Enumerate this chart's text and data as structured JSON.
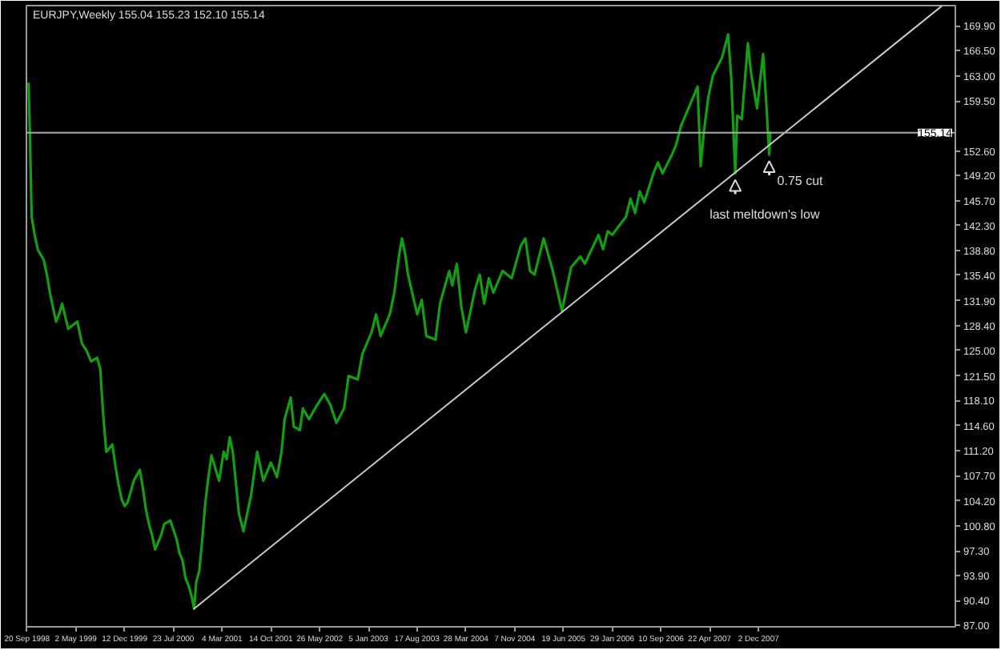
{
  "chart_data": {
    "type": "line",
    "title": "EURJPY,Weekly 155.04 155.23 152.10 155.14",
    "series": [
      {
        "color": "#12a012",
        "x": [
          "1998-09-27",
          "1998-10-04",
          "1998-10-11",
          "1998-10-25",
          "1998-11-08",
          "1998-12-06",
          "1998-12-20",
          "1999-01-03",
          "1999-01-17",
          "1999-01-31",
          "1999-02-14",
          "1999-02-28",
          "1999-03-28",
          "1999-04-18",
          "1999-05-09",
          "1999-05-30",
          "1999-06-20",
          "1999-07-11",
          "1999-08-08",
          "1999-08-22",
          "1999-09-05",
          "1999-09-19",
          "1999-10-17",
          "1999-10-31",
          "1999-11-14",
          "1999-11-28",
          "1999-12-12",
          "1999-12-26",
          "2000-01-09",
          "2000-01-23",
          "2000-02-20",
          "2000-03-05",
          "2000-03-19",
          "2000-04-02",
          "2000-04-16",
          "2000-04-30",
          "2000-05-14",
          "2000-05-28",
          "2000-06-11",
          "2000-07-09",
          "2000-08-06",
          "2000-08-20",
          "2000-09-03",
          "2000-09-17",
          "2000-10-01",
          "2000-10-15",
          "2000-10-26",
          "2000-11-05",
          "2000-11-19",
          "2000-12-03",
          "2000-12-17",
          "2000-12-31",
          "2001-01-14",
          "2001-02-18",
          "2001-03-11",
          "2001-03-25",
          "2001-04-08",
          "2001-04-22",
          "2001-05-20",
          "2001-06-10",
          "2001-07-15",
          "2001-08-12",
          "2001-09-09",
          "2001-10-14",
          "2001-11-11",
          "2001-12-02",
          "2001-12-16",
          "2002-01-13",
          "2002-01-27",
          "2002-02-24",
          "2002-03-10",
          "2002-04-07",
          "2002-05-05",
          "2002-06-16",
          "2002-07-14",
          "2002-08-11",
          "2002-09-15",
          "2002-10-06",
          "2002-11-17",
          "2002-12-08",
          "2003-01-19",
          "2003-02-09",
          "2003-03-02",
          "2003-04-13",
          "2003-05-04",
          "2003-05-25",
          "2003-06-08",
          "2003-06-22",
          "2003-07-06",
          "2003-08-17",
          "2003-09-07",
          "2003-09-28",
          "2003-11-09",
          "2003-11-30",
          "2004-01-11",
          "2004-01-25",
          "2004-02-15",
          "2004-03-07",
          "2004-03-28",
          "2004-05-09",
          "2004-05-30",
          "2004-06-20",
          "2004-07-11",
          "2004-08-01",
          "2004-09-12",
          "2004-10-24",
          "2004-12-05",
          "2004-12-26",
          "2005-01-16",
          "2005-02-06",
          "2005-03-20",
          "2005-05-01",
          "2005-06-12",
          "2005-07-24",
          "2005-09-04",
          "2005-09-25",
          "2005-11-27",
          "2005-12-18",
          "2006-01-08",
          "2006-01-29",
          "2006-04-02",
          "2006-04-23",
          "2006-05-14",
          "2006-06-04",
          "2006-06-25",
          "2006-08-06",
          "2006-08-27",
          "2006-09-17",
          "2006-10-29",
          "2006-11-19",
          "2006-12-10",
          "2007-01-21",
          "2007-02-25",
          "2007-03-11",
          "2007-03-25",
          "2007-04-15",
          "2007-05-06",
          "2007-06-17",
          "2007-07-15",
          "2007-07-29",
          "2007-08-17",
          "2007-08-26",
          "2007-09-16",
          "2007-10-14",
          "2007-10-28",
          "2007-11-25",
          "2007-12-23",
          "2008-01-06",
          "2008-01-20",
          "2008-01-25"
        ],
        "values": [
          161.9,
          153.5,
          143.5,
          141.0,
          139.0,
          137.5,
          135.5,
          133.0,
          131.0,
          129.0,
          130.0,
          131.5,
          128.0,
          128.5,
          129.0,
          126.0,
          125.0,
          123.5,
          124.0,
          122.5,
          116.0,
          111.0,
          112.0,
          109.0,
          106.5,
          104.5,
          103.5,
          104.0,
          105.5,
          107.0,
          108.5,
          106.0,
          103.0,
          101.0,
          99.5,
          97.5,
          98.5,
          99.5,
          101.0,
          101.5,
          99.0,
          97.0,
          96.0,
          93.5,
          92.5,
          91.0,
          89.3,
          93.0,
          94.5,
          99.0,
          104.0,
          107.5,
          110.5,
          107.0,
          111.0,
          110.0,
          113.0,
          111.0,
          102.5,
          100.0,
          105.0,
          111.0,
          107.0,
          109.5,
          107.5,
          111.0,
          115.5,
          118.5,
          114.5,
          114.0,
          117.0,
          115.5,
          117.0,
          119.0,
          117.5,
          115.0,
          117.0,
          121.5,
          121.0,
          124.5,
          127.5,
          130.0,
          127.0,
          130.0,
          133.0,
          138.0,
          140.5,
          138.5,
          135.5,
          130.0,
          132.0,
          127.0,
          126.5,
          131.5,
          136.0,
          134.0,
          137.0,
          131.0,
          127.5,
          133.5,
          135.5,
          131.5,
          135.0,
          133.0,
          136.0,
          135.0,
          139.5,
          140.5,
          136.0,
          135.5,
          140.5,
          136.0,
          130.5,
          136.5,
          138.0,
          137.0,
          141.0,
          139.0,
          141.5,
          141.0,
          143.5,
          146.0,
          144.0,
          147.0,
          145.5,
          149.5,
          151.0,
          149.5,
          152.0,
          153.5,
          156.0,
          159.0,
          161.5,
          150.5,
          155.0,
          160.0,
          163.0,
          165.5,
          168.7,
          163.0,
          149.5,
          157.5,
          157.0,
          167.5,
          163.5,
          158.5,
          166.0,
          159.5,
          152.1,
          155.14
        ]
      },
      {
        "type": "line",
        "color": "#c8c8c8",
        "x": [
          "2000-10-26",
          "2010-03-21"
        ],
        "values": [
          89.3,
          172.6
        ]
      }
    ],
    "xlim": [
      "1998-09-17",
      "2010-05-24"
    ],
    "xticks": [
      {
        "value": "1998-09-20",
        "label": "20 Sep 1998"
      },
      {
        "value": "1999-05-02",
        "label": "2 May 1999"
      },
      {
        "value": "1999-12-12",
        "label": "12 Dec 1999"
      },
      {
        "value": "2000-07-23",
        "label": "23 Jul 2000"
      },
      {
        "value": "2001-03-04",
        "label": "4 Mar 2001"
      },
      {
        "value": "2001-10-14",
        "label": "14 Oct 2001"
      },
      {
        "value": "2002-05-26",
        "label": "26 May 2002"
      },
      {
        "value": "2003-01-05",
        "label": "5 Jan 2003"
      },
      {
        "value": "2003-08-17",
        "label": "17 Aug 2003"
      },
      {
        "value": "2004-03-28",
        "label": "28 Mar 2004"
      },
      {
        "value": "2004-11-07",
        "label": "7 Nov 2004"
      },
      {
        "value": "2005-06-19",
        "label": "19 Jun 2005"
      },
      {
        "value": "2006-01-29",
        "label": "29 Jan 2006"
      },
      {
        "value": "2006-09-10",
        "label": "10 Sep 2006"
      },
      {
        "value": "2007-04-22",
        "label": "22 Apr 2007"
      },
      {
        "value": "2007-12-02",
        "label": "2 Dec 2007"
      }
    ],
    "ylim": [
      86.8,
      172.7
    ],
    "yticks": [
      {
        "value": 87.0,
        "label": "87.00"
      },
      {
        "value": 90.4,
        "label": "90.40"
      },
      {
        "value": 93.9,
        "label": "93.90"
      },
      {
        "value": 97.3,
        "label": "97.30"
      },
      {
        "value": 100.8,
        "label": "100.80"
      },
      {
        "value": 104.2,
        "label": "104.20"
      },
      {
        "value": 107.7,
        "label": "107.70"
      },
      {
        "value": 111.2,
        "label": "111.20"
      },
      {
        "value": 114.6,
        "label": "114.60"
      },
      {
        "value": 118.1,
        "label": "118.10"
      },
      {
        "value": 121.5,
        "label": "121.50"
      },
      {
        "value": 125.0,
        "label": "125.00"
      },
      {
        "value": 128.4,
        "label": "128.40"
      },
      {
        "value": 131.9,
        "label": "131.90"
      },
      {
        "value": 135.4,
        "label": "135.40"
      },
      {
        "value": 138.8,
        "label": "138.80"
      },
      {
        "value": 142.3,
        "label": "142.30"
      },
      {
        "value": 145.7,
        "label": "145.70"
      },
      {
        "value": 149.2,
        "label": "149.20"
      },
      {
        "value": 152.6,
        "label": "152.60"
      },
      {
        "value": 159.5,
        "label": "159.50"
      },
      {
        "value": 163.0,
        "label": "163.00"
      },
      {
        "value": 166.5,
        "label": "166.50"
      },
      {
        "value": 169.9,
        "label": "169.90"
      }
    ],
    "ref_lines": [
      {
        "axis": "y",
        "value": 155.14,
        "label": "155.14",
        "color": "#a8a8a8"
      }
    ],
    "annotations": [
      {
        "text": "last meltdown's low",
        "x": "2007-08-17",
        "y": 149.5
      },
      {
        "text": "0.75 cut",
        "x": "2008-01-20",
        "y": 152.1
      }
    ]
  }
}
